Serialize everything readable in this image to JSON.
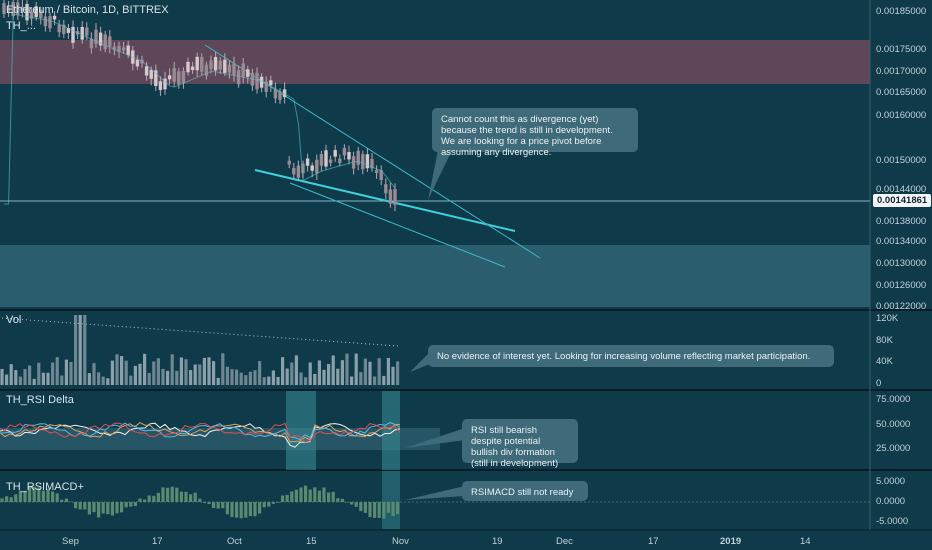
{
  "symbol_title": "Ethereum / Bitcoin, 1D, BITTREX",
  "indicator_overlay_label": "TH_...",
  "price_axis": {
    "ticks": [
      "0.00185000",
      "0.00175000",
      "0.00170000",
      "0.00165000",
      "0.00160000",
      "0.00150000",
      "0.00144000",
      "0.00138000",
      "0.00134000",
      "0.00130000",
      "0.00126000",
      "0.00122000"
    ],
    "current_price": "0.00141861"
  },
  "volume_pane": {
    "label": "Vol",
    "ticks": [
      "120K",
      "80K",
      "40K",
      "0"
    ]
  },
  "rsi_pane": {
    "label": "TH_RSI Delta",
    "ticks": [
      "75.0000",
      "50.0000",
      "25.0000"
    ]
  },
  "rsimacd_pane": {
    "label": "TH_RSIMACD+",
    "ticks": [
      "5.0000",
      "0.0000",
      "-5.0000"
    ]
  },
  "time_axis": [
    "Sep",
    "17",
    "Oct",
    "15",
    "Nov",
    "19",
    "Dec",
    "17",
    "2019",
    "14"
  ],
  "annotations": {
    "price_note": "Cannot count this as divergence (yet)\nbecause the trend is still in development.\nWe are looking for a price pivot before\nassuming any divergence.",
    "volume_note": "No evidence of interest yet. Looking for increasing volume reflecting market participation.",
    "rsi_note": "RSI still bearish\ndespite potential\nbullish div formation\n(still in development)",
    "rsimacd_note": "RSIMACD still not ready"
  },
  "colors": {
    "background": "#0f3a4a",
    "upper_zone": "#6b4a5c",
    "lower_zone": "#2e6272",
    "candle_up": "#d8c8cc",
    "candle_down": "#9a8a94",
    "trendline": "#3fd0dc",
    "callout": "#3f6a7a"
  }
}
